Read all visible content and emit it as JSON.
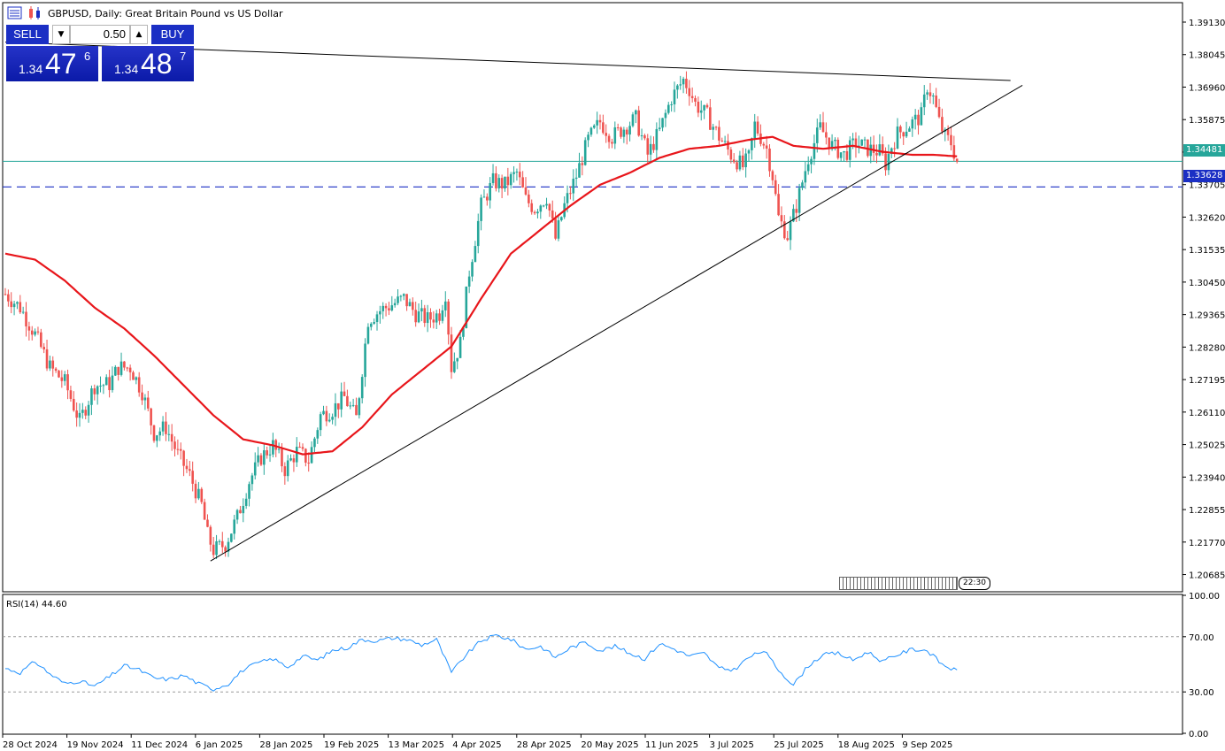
{
  "window": {
    "title": "GBPUSD, Daily:  Great Britain Pound vs US Dollar",
    "icons": [
      "chart-window-icon",
      "chart-type-icon"
    ]
  },
  "trade_panel": {
    "sell_label": "SELL",
    "buy_label": "BUY",
    "lot_value": "0.50",
    "sell_price": {
      "small": "1.34",
      "big": "47",
      "sup": "6"
    },
    "buy_price": {
      "small": "1.34",
      "big": "48",
      "sup": "7"
    }
  },
  "price_axis": {
    "ticks": [
      "1.39130",
      "1.38045",
      "1.36960",
      "1.35875",
      "1.34790",
      "1.33705",
      "1.32620",
      "1.31535",
      "1.30450",
      "1.29365",
      "1.28280",
      "1.27195",
      "1.26110",
      "1.25025",
      "1.23940",
      "1.22855",
      "1.21770",
      "1.20685"
    ],
    "current_price_tag": "1.34481",
    "hline_tag": "1.33628"
  },
  "rsi": {
    "label": "RSI(14) 44.60",
    "ticks": [
      "100.00",
      "70.00",
      "30.00",
      "0.00"
    ],
    "levels": [
      70,
      30
    ]
  },
  "time_axis": {
    "labels": [
      "28 Oct 2024",
      "19 Nov 2024",
      "11 Dec 2024",
      "6 Jan 2025",
      "28 Jan 2025",
      "19 Feb 2025",
      "13 Mar 2025",
      "4 Apr 2025",
      "28 Apr 2025",
      "20 May 2025",
      "11 Jun 2025",
      "3 Jul 2025",
      "25 Jul 2025",
      "18 Aug 2025",
      "9 Sep 2025"
    ]
  },
  "time_badge": "22:30",
  "colors": {
    "bull": "#26a69a",
    "bear": "#ef5350",
    "ma": "#e8161b",
    "rsi": "#1e90ff",
    "hline_solid": "#26a69a",
    "hline_dashed": "#1b2fc4"
  },
  "chart_data": {
    "type": "candlestick",
    "symbol": "GBPUSD",
    "timeframe": "Daily",
    "ylim": [
      1.2014,
      1.3975
    ],
    "indicators": [
      "moving average",
      "RSI(14)"
    ],
    "rsi_ylim": [
      0,
      100
    ],
    "current_price": 1.34481,
    "horizontal_line": 1.33628,
    "anchors_close": [
      [
        0,
        1.3005
      ],
      [
        5,
        1.296
      ],
      [
        10,
        1.287
      ],
      [
        15,
        1.276
      ],
      [
        20,
        1.271
      ],
      [
        25,
        1.258
      ],
      [
        30,
        1.27
      ],
      [
        35,
        1.2705
      ],
      [
        38,
        1.276
      ],
      [
        42,
        1.276
      ],
      [
        46,
        1.268
      ],
      [
        50,
        1.254
      ],
      [
        54,
        1.256
      ],
      [
        58,
        1.247
      ],
      [
        62,
        1.24
      ],
      [
        66,
        1.23
      ],
      [
        68,
        1.22
      ],
      [
        70,
        1.215
      ],
      [
        74,
        1.217
      ],
      [
        78,
        1.226
      ],
      [
        82,
        1.238
      ],
      [
        86,
        1.246
      ],
      [
        90,
        1.25
      ],
      [
        94,
        1.242
      ],
      [
        98,
        1.248
      ],
      [
        102,
        1.245
      ],
      [
        106,
        1.26
      ],
      [
        110,
        1.262
      ],
      [
        114,
        1.266
      ],
      [
        118,
        1.259
      ],
      [
        122,
        1.292
      ],
      [
        126,
        1.295
      ],
      [
        130,
        1.297
      ],
      [
        134,
        1.299
      ],
      [
        138,
        1.294
      ],
      [
        142,
        1.292
      ],
      [
        146,
        1.294
      ],
      [
        148,
        1.301
      ],
      [
        150,
        1.276
      ],
      [
        153,
        1.284
      ],
      [
        156,
        1.308
      ],
      [
        160,
        1.33
      ],
      [
        164,
        1.338
      ],
      [
        168,
        1.337
      ],
      [
        172,
        1.341
      ],
      [
        175,
        1.332
      ],
      [
        178,
        1.329
      ],
      [
        182,
        1.333
      ],
      [
        185,
        1.319
      ],
      [
        188,
        1.33
      ],
      [
        192,
        1.34
      ],
      [
        196,
        1.352
      ],
      [
        200,
        1.358
      ],
      [
        204,
        1.353
      ],
      [
        208,
        1.356
      ],
      [
        212,
        1.359
      ],
      [
        216,
        1.347
      ],
      [
        220,
        1.355
      ],
      [
        224,
        1.366
      ],
      [
        228,
        1.372
      ],
      [
        230,
        1.369
      ],
      [
        232,
        1.364
      ],
      [
        236,
        1.36
      ],
      [
        240,
        1.353
      ],
      [
        244,
        1.347
      ],
      [
        248,
        1.343
      ],
      [
        250,
        1.346
      ],
      [
        252,
        1.357
      ],
      [
        256,
        1.349
      ],
      [
        258,
        1.34
      ],
      [
        260,
        1.326
      ],
      [
        263,
        1.32
      ],
      [
        266,
        1.33
      ],
      [
        270,
        1.346
      ],
      [
        274,
        1.356
      ],
      [
        278,
        1.35
      ],
      [
        282,
        1.347
      ],
      [
        286,
        1.351
      ],
      [
        290,
        1.349
      ],
      [
        294,
        1.348
      ],
      [
        296,
        1.344
      ],
      [
        298,
        1.35
      ],
      [
        300,
        1.354
      ],
      [
        304,
        1.357
      ],
      [
        308,
        1.36
      ],
      [
        310,
        1.37
      ],
      [
        312,
        1.366
      ],
      [
        314,
        1.358
      ],
      [
        316,
        1.353
      ],
      [
        318,
        1.351
      ],
      [
        320,
        1.3448
      ]
    ],
    "ma_line": [
      [
        0,
        1.314
      ],
      [
        10,
        1.312
      ],
      [
        20,
        1.305
      ],
      [
        30,
        1.296
      ],
      [
        40,
        1.289
      ],
      [
        50,
        1.28
      ],
      [
        60,
        1.27
      ],
      [
        70,
        1.26
      ],
      [
        80,
        1.252
      ],
      [
        90,
        1.25
      ],
      [
        100,
        1.247
      ],
      [
        110,
        1.248
      ],
      [
        120,
        1.256
      ],
      [
        130,
        1.267
      ],
      [
        140,
        1.275
      ],
      [
        150,
        1.283
      ],
      [
        160,
        1.299
      ],
      [
        170,
        1.314
      ],
      [
        180,
        1.322
      ],
      [
        190,
        1.33
      ],
      [
        200,
        1.337
      ],
      [
        210,
        1.341
      ],
      [
        220,
        1.346
      ],
      [
        230,
        1.349
      ],
      [
        240,
        1.35
      ],
      [
        250,
        1.352
      ],
      [
        258,
        1.353
      ],
      [
        265,
        1.35
      ],
      [
        275,
        1.349
      ],
      [
        285,
        1.35
      ],
      [
        295,
        1.348
      ],
      [
        305,
        1.347
      ],
      [
        312,
        1.347
      ],
      [
        320,
        1.3465
      ]
    ],
    "trendline_resistance": [
      [
        0,
        1.3846
      ],
      [
        338,
        1.3718
      ]
    ],
    "trendline_support": [
      [
        69,
        1.2114
      ],
      [
        342,
        1.3702
      ]
    ],
    "rsi_anchors": [
      [
        0,
        47
      ],
      [
        5,
        44
      ],
      [
        10,
        52
      ],
      [
        15,
        43
      ],
      [
        20,
        36
      ],
      [
        25,
        38
      ],
      [
        30,
        34
      ],
      [
        35,
        41
      ],
      [
        40,
        49
      ],
      [
        45,
        46
      ],
      [
        50,
        40
      ],
      [
        55,
        39
      ],
      [
        60,
        42
      ],
      [
        65,
        36
      ],
      [
        70,
        32
      ],
      [
        75,
        36
      ],
      [
        80,
        46
      ],
      [
        85,
        51
      ],
      [
        90,
        54
      ],
      [
        95,
        48
      ],
      [
        100,
        56
      ],
      [
        105,
        53
      ],
      [
        110,
        60
      ],
      [
        115,
        62
      ],
      [
        120,
        68
      ],
      [
        125,
        67
      ],
      [
        130,
        69
      ],
      [
        135,
        68
      ],
      [
        140,
        64
      ],
      [
        145,
        68
      ],
      [
        150,
        44
      ],
      [
        155,
        57
      ],
      [
        160,
        67
      ],
      [
        165,
        71
      ],
      [
        170,
        68
      ],
      [
        175,
        61
      ],
      [
        180,
        63
      ],
      [
        185,
        55
      ],
      [
        190,
        62
      ],
      [
        195,
        66
      ],
      [
        200,
        60
      ],
      [
        205,
        63
      ],
      [
        210,
        58
      ],
      [
        215,
        54
      ],
      [
        220,
        65
      ],
      [
        225,
        61
      ],
      [
        230,
        56
      ],
      [
        235,
        58
      ],
      [
        240,
        47
      ],
      [
        245,
        46
      ],
      [
        250,
        55
      ],
      [
        255,
        60
      ],
      [
        260,
        46
      ],
      [
        265,
        35
      ],
      [
        270,
        49
      ],
      [
        275,
        57
      ],
      [
        280,
        58
      ],
      [
        285,
        53
      ],
      [
        290,
        59
      ],
      [
        295,
        52
      ],
      [
        300,
        57
      ],
      [
        305,
        61
      ],
      [
        310,
        60
      ],
      [
        315,
        50
      ],
      [
        320,
        45
      ]
    ]
  }
}
